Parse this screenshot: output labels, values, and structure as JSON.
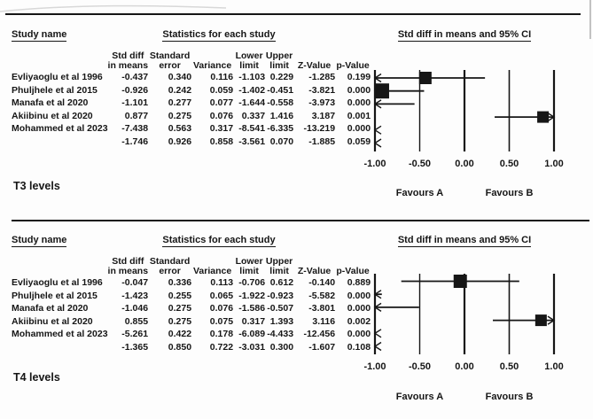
{
  "page": {
    "background": "#fdfdfd",
    "ink": "#161616"
  },
  "columns": [
    {
      "line1": "Std diff",
      "line2": "in means"
    },
    {
      "line1": "Standard",
      "line2": "error"
    },
    {
      "line1": "",
      "line2": "Variance"
    },
    {
      "line1": "Lower",
      "line2": "limit"
    },
    {
      "line1": "Upper",
      "line2": "limit"
    },
    {
      "line1": "",
      "line2": "Z-Value"
    },
    {
      "line1": "",
      "line2": "p-Value"
    }
  ],
  "axis": {
    "xlim": [
      -1,
      1
    ],
    "tick_values": [
      -1,
      -0.5,
      0,
      0.5,
      1
    ],
    "tick_labels": [
      "-1.00",
      "-0.50",
      "0.00",
      "0.50",
      "1.00"
    ],
    "left_label": "Favours A",
    "right_label": "Favours B"
  },
  "panels": [
    {
      "id": "t3",
      "label": "T3 levels",
      "header": {
        "study_name": "Study name",
        "stats_title": "Statistics for each study",
        "plot_title": "Std diff in means and 95% CI"
      },
      "studies": [
        {
          "name": "Evliyaoglu et al 1996",
          "stats": [
            "-0.437",
            "0.340",
            "0.116",
            "-1.103",
            "0.229",
            "-1.285",
            "0.199"
          ],
          "plot": {
            "lo": -1.0,
            "hi": 0.229,
            "sq": -0.437,
            "sq_size": 14,
            "arrow": "left"
          }
        },
        {
          "name": "Phuljhele et al 2015",
          "stats": [
            "-0.926",
            "0.242",
            "0.059",
            "-1.402",
            "-0.451",
            "-3.821",
            "0.000"
          ],
          "plot": {
            "lo": -1.0,
            "hi": -0.451,
            "sq": -0.926,
            "sq_size": 17,
            "arrow": "left"
          }
        },
        {
          "name": "Manafa et al 2020",
          "stats": [
            "-1.101",
            "0.277",
            "0.077",
            "-1.644",
            "-0.558",
            "-3.973",
            "0.000"
          ],
          "plot": {
            "lo": -1.0,
            "hi": -0.558,
            "sq": null,
            "arrow": "left"
          }
        },
        {
          "name": "Akiibinu et al 2020",
          "stats": [
            "0.877",
            "0.275",
            "0.076",
            "0.337",
            "1.416",
            "3.187",
            "0.001"
          ],
          "plot": {
            "lo": 0.337,
            "hi": 1.0,
            "sq": 0.877,
            "sq_size": 13,
            "arrow": "right"
          }
        },
        {
          "name": "Mohammed et al 2023",
          "stats": [
            "-7.438",
            "0.563",
            "0.317",
            "-8.541",
            "-6.335",
            "-13.219",
            "0.000"
          ],
          "plot": {
            "arrow_only": "left"
          }
        },
        {
          "name": "",
          "stats": [
            "-1.746",
            "0.926",
            "0.858",
            "-3.561",
            "0.070",
            "-1.885",
            "0.059"
          ],
          "plot": {
            "arrow_only": "left"
          }
        }
      ]
    },
    {
      "id": "t4",
      "label": "T4 levels",
      "header": {
        "study_name": "Study name",
        "stats_title": "Statistics for each study",
        "plot_title": "Std diff in means and 95% CI"
      },
      "studies": [
        {
          "name": "Evliyaoglu et al 1996",
          "stats": [
            "-0.047",
            "0.336",
            "0.113",
            "-0.706",
            "0.612",
            "-0.140",
            "0.889"
          ],
          "plot": {
            "lo": -0.706,
            "hi": 0.612,
            "sq": -0.047,
            "sq_size": 15
          }
        },
        {
          "name": "Phuljhele et al 2015",
          "stats": [
            "-1.423",
            "0.255",
            "0.065",
            "-1.922",
            "-0.923",
            "-5.582",
            "0.000"
          ],
          "plot": {
            "lo": -1.0,
            "hi": -0.923,
            "sq": null,
            "arrow": "left"
          }
        },
        {
          "name": "Manafa et al 2020",
          "stats": [
            "-1.046",
            "0.275",
            "0.076",
            "-1.586",
            "-0.507",
            "-3.801",
            "0.000"
          ],
          "plot": {
            "lo": -1.0,
            "hi": -0.507,
            "sq": null,
            "arrow": "left"
          }
        },
        {
          "name": "Akiibinu et al 2020",
          "stats": [
            "0.855",
            "0.275",
            "0.075",
            "0.317",
            "1.393",
            "3.116",
            "0.002"
          ],
          "plot": {
            "lo": 0.317,
            "hi": 1.0,
            "sq": 0.855,
            "sq_size": 13,
            "arrow": "right"
          }
        },
        {
          "name": "Mohammed et al 2023",
          "stats": [
            "-5.261",
            "0.422",
            "0.178",
            "-6.089",
            "-4.433",
            "-12.456",
            "0.000"
          ],
          "plot": {
            "arrow_only": "left"
          }
        },
        {
          "name": "",
          "stats": [
            "-1.365",
            "0.850",
            "0.722",
            "-3.031",
            "0.300",
            "-1.607",
            "0.108"
          ],
          "plot": {
            "arrow_only": "left"
          }
        }
      ]
    }
  ],
  "chart_data": [
    {
      "type": "forest",
      "panel": "T3 levels",
      "title": "Std diff in means and 95% CI",
      "stats_title": "Statistics for each study",
      "xlim": [
        -1,
        1
      ],
      "xticks": [
        -1.0,
        -0.5,
        0.0,
        0.5,
        1.0
      ],
      "xlabel_left": "Favours A",
      "xlabel_right": "Favours B",
      "studies": [
        "Evliyaoglu et al 1996",
        "Phuljhele et al 2015",
        "Manafa et al 2020",
        "Akiibinu et al 2020",
        "Mohammed et al 2023"
      ],
      "std_diff_in_means": [
        -0.437,
        -0.926,
        -1.101,
        0.877,
        -7.438
      ],
      "standard_error": [
        0.34,
        0.242,
        0.277,
        0.275,
        0.563
      ],
      "variance": [
        0.116,
        0.059,
        0.077,
        0.076,
        0.317
      ],
      "lower_limit": [
        -1.103,
        -1.402,
        -1.644,
        0.337,
        -8.541
      ],
      "upper_limit": [
        0.229,
        -0.451,
        -0.558,
        1.416,
        -6.335
      ],
      "z_value": [
        -1.285,
        -3.821,
        -3.973,
        3.187,
        -13.219
      ],
      "p_value": [
        0.199,
        0.0,
        0.0,
        0.001,
        0.0
      ],
      "overall": {
        "std_diff_in_means": -1.746,
        "standard_error": 0.926,
        "variance": 0.858,
        "lower_limit": -3.561,
        "upper_limit": 0.07,
        "z_value": -1.885,
        "p_value": 0.059
      }
    },
    {
      "type": "forest",
      "panel": "T4 levels",
      "title": "Std diff in means and 95% CI",
      "stats_title": "Statistics for each study",
      "xlim": [
        -1,
        1
      ],
      "xticks": [
        -1.0,
        -0.5,
        0.0,
        0.5,
        1.0
      ],
      "xlabel_left": "Favours A",
      "xlabel_right": "Favours B",
      "studies": [
        "Evliyaoglu et al 1996",
        "Phuljhele et al 2015",
        "Manafa et al 2020",
        "Akiibinu et al 2020",
        "Mohammed et al 2023"
      ],
      "std_diff_in_means": [
        -0.047,
        -1.423,
        -1.046,
        0.855,
        -5.261
      ],
      "standard_error": [
        0.336,
        0.255,
        0.275,
        0.275,
        0.422
      ],
      "variance": [
        0.113,
        0.065,
        0.076,
        0.075,
        0.178
      ],
      "lower_limit": [
        -0.706,
        -1.922,
        -1.586,
        0.317,
        -6.089
      ],
      "upper_limit": [
        0.612,
        -0.923,
        -0.507,
        1.393,
        -4.433
      ],
      "z_value": [
        -0.14,
        -5.582,
        -3.801,
        3.116,
        -12.456
      ],
      "p_value": [
        0.889,
        0.0,
        0.0,
        0.002,
        0.0
      ],
      "overall": {
        "std_diff_in_means": -1.365,
        "standard_error": 0.85,
        "variance": 0.722,
        "lower_limit": -3.031,
        "upper_limit": 0.3,
        "z_value": -1.607,
        "p_value": 0.108
      }
    }
  ]
}
